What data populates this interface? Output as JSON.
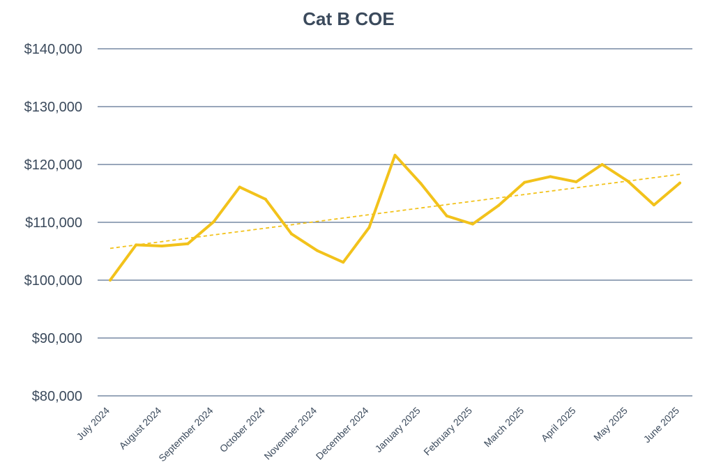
{
  "chart_data": {
    "type": "line",
    "title": "Cat B COE",
    "xlabel": "",
    "ylabel": "",
    "ylim": [
      80000,
      140000
    ],
    "y_ticks": [
      80000,
      90000,
      100000,
      110000,
      120000,
      130000,
      140000
    ],
    "y_tick_labels": [
      "$80,000",
      "$90,000",
      "$100,000",
      "$110,000",
      "$120,000",
      "$130,000",
      "$140,000"
    ],
    "grid": true,
    "x_tick_labels": [
      "July 2024",
      "August 2024",
      "September 2024",
      "October 2024",
      "November 2024",
      "December 2024",
      "January 2025",
      "February 2025",
      "March 2025",
      "April 2025",
      "May 2025",
      "June 2025"
    ],
    "series": [
      {
        "name": "Cat B COE",
        "color": "#f2c21b",
        "values": [
          100000,
          106100,
          105900,
          106300,
          110100,
          116100,
          114000,
          108000,
          105100,
          103100,
          109100,
          121600,
          116700,
          111100,
          109700,
          112900,
          116900,
          117900,
          117000,
          120000,
          117100,
          113000,
          116800
        ]
      }
    ],
    "trendline": {
      "type": "linear",
      "color": "#f2c21b",
      "style": "dashed",
      "start": 105500,
      "end": 118300
    }
  }
}
